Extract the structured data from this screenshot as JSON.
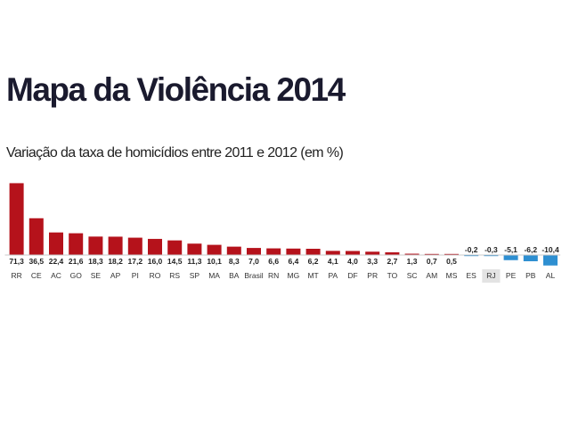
{
  "header": {
    "title": "Mapa da Violência 2014",
    "subtitle": "Variação da taxa de homicídios entre 2011 e 2012 (em %)"
  },
  "colors": {
    "positive": "#b5121b",
    "negative": "#2e8fd1",
    "highlight_background": "#e3e3e3"
  },
  "chart_data": {
    "type": "bar",
    "title": "Mapa da Violência 2014",
    "subtitle": "Variação da taxa de homicídios entre 2011 e 2012 (em %)",
    "xlabel": "",
    "ylabel": "",
    "grid": false,
    "legend": "none",
    "categories": [
      "RR",
      "CE",
      "AC",
      "GO",
      "SE",
      "AP",
      "PI",
      "RO",
      "RS",
      "SP",
      "MA",
      "BA",
      "Brasil",
      "RN",
      "MG",
      "MT",
      "PA",
      "DF",
      "PR",
      "TO",
      "SC",
      "AM",
      "MS",
      "ES",
      "RJ",
      "PE",
      "PB",
      "AL"
    ],
    "values": [
      71.3,
      36.5,
      22.4,
      21.6,
      18.3,
      18.2,
      17.2,
      16.0,
      14.5,
      11.3,
      10.1,
      8.3,
      7.0,
      6.6,
      6.4,
      6.2,
      4.1,
      4.0,
      3.3,
      2.7,
      1.3,
      0.7,
      0.5,
      -0.2,
      -0.3,
      -5.1,
      -6.2,
      -10.4
    ],
    "value_labels": [
      "71,3",
      "36,5",
      "22,4",
      "21,6",
      "18,3",
      "18,2",
      "17,2",
      "16,0",
      "14,5",
      "11,3",
      "10,1",
      "8,3",
      "7,0",
      "6,6",
      "6,4",
      "6,2",
      "4,1",
      "4,0",
      "3,3",
      "2,7",
      "1,3",
      "0,7",
      "0,5",
      "-0,2",
      "-0,3",
      "-5,1",
      "-6,2",
      "-10,4"
    ],
    "highlighted_category": "RJ"
  }
}
